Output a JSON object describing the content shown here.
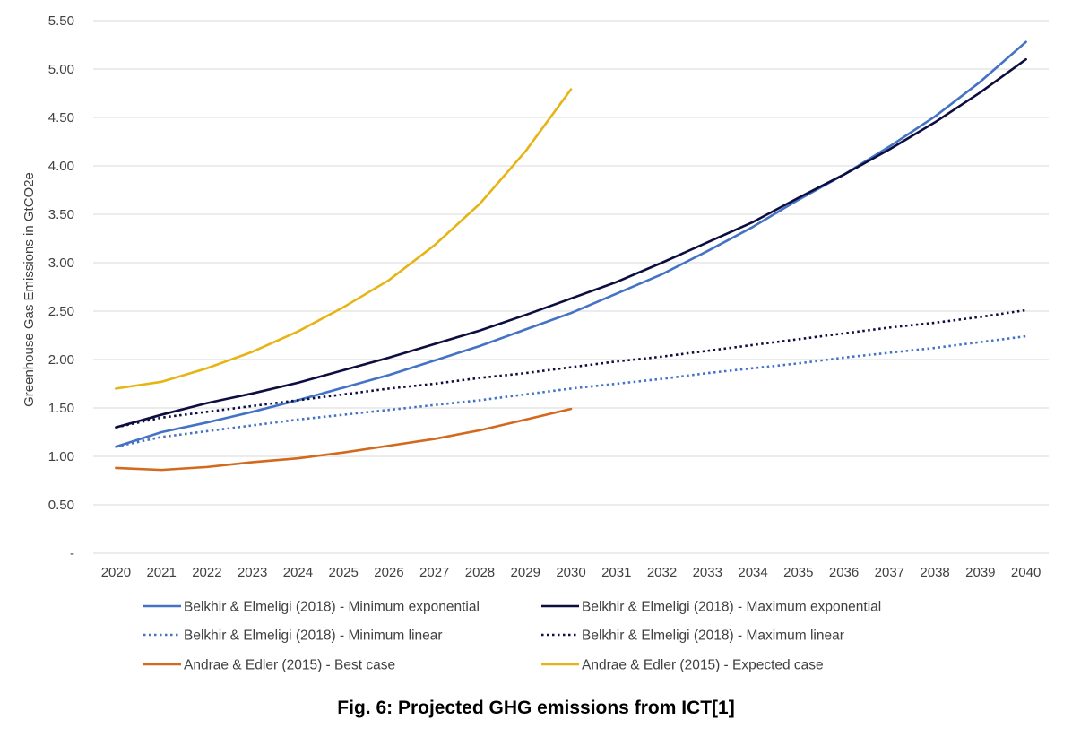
{
  "caption": "Fig. 6: Projected GHG emissions from ICT[1]",
  "chart_data": {
    "type": "line",
    "title": "",
    "xlabel": "",
    "ylabel": "Greenhouse Gas Emissions in GtCO2e",
    "x": [
      2020,
      2021,
      2022,
      2023,
      2024,
      2025,
      2026,
      2027,
      2028,
      2029,
      2030,
      2031,
      2032,
      2033,
      2034,
      2035,
      2036,
      2037,
      2038,
      2039,
      2040
    ],
    "ylim": [
      0,
      5.5
    ],
    "ytick_values": [
      0,
      0.5,
      1,
      1.5,
      2,
      2.5,
      3,
      3.5,
      4,
      4.5,
      5,
      5.5
    ],
    "ytick_labels": [
      "-",
      "0.50",
      "1.00",
      "1.50",
      "2.00",
      "2.50",
      "3.00",
      "3.50",
      "4.00",
      "4.50",
      "5.00",
      "5.50"
    ],
    "grid": "horizontal",
    "legend": "bottom",
    "series": [
      {
        "name": "Belkhir & Elmeligi (2018) - Minimum exponential",
        "color": "#4472C4",
        "style": "solid",
        "values": [
          1.1,
          1.25,
          1.35,
          1.46,
          1.58,
          1.71,
          1.84,
          1.99,
          2.14,
          2.31,
          2.48,
          2.68,
          2.88,
          3.12,
          3.37,
          3.65,
          3.91,
          4.2,
          4.51,
          4.87,
          5.28
        ]
      },
      {
        "name": "Belkhir & Elmeligi (2018) - Maximum exponential",
        "color": "#0D0D40",
        "style": "solid",
        "values": [
          1.3,
          1.43,
          1.55,
          1.65,
          1.76,
          1.89,
          2.02,
          2.16,
          2.3,
          2.46,
          2.63,
          2.8,
          3.0,
          3.21,
          3.42,
          3.67,
          3.91,
          4.17,
          4.45,
          4.76,
          5.1
        ]
      },
      {
        "name": "Belkhir & Elmeligi (2018) - Minimum linear",
        "color": "#4472C4",
        "style": "dotted",
        "values": [
          1.1,
          1.2,
          1.26,
          1.32,
          1.38,
          1.43,
          1.48,
          1.53,
          1.58,
          1.64,
          1.7,
          1.75,
          1.8,
          1.86,
          1.91,
          1.96,
          2.02,
          2.07,
          2.12,
          2.18,
          2.24
        ]
      },
      {
        "name": "Belkhir & Elmeligi (2018) - Maximum linear",
        "color": "#0D0D40",
        "style": "dotted",
        "values": [
          1.3,
          1.4,
          1.46,
          1.52,
          1.58,
          1.64,
          1.7,
          1.75,
          1.81,
          1.86,
          1.92,
          1.98,
          2.03,
          2.09,
          2.15,
          2.21,
          2.27,
          2.33,
          2.38,
          2.44,
          2.51
        ]
      },
      {
        "name": "Andrae & Edler (2015) - Best case",
        "color": "#D2691E",
        "style": "solid",
        "values": [
          0.88,
          0.86,
          0.89,
          0.94,
          0.98,
          1.04,
          1.11,
          1.18,
          1.27,
          1.38,
          1.49,
          null,
          null,
          null,
          null,
          null,
          null,
          null,
          null,
          null,
          null
        ]
      },
      {
        "name": "Andrae & Edler (2015) - Expected case",
        "color": "#E6B414",
        "style": "solid",
        "values": [
          1.7,
          1.77,
          1.91,
          2.08,
          2.29,
          2.54,
          2.82,
          3.18,
          3.61,
          4.15,
          4.79,
          null,
          null,
          null,
          null,
          null,
          null,
          null,
          null,
          null,
          null
        ]
      }
    ]
  }
}
